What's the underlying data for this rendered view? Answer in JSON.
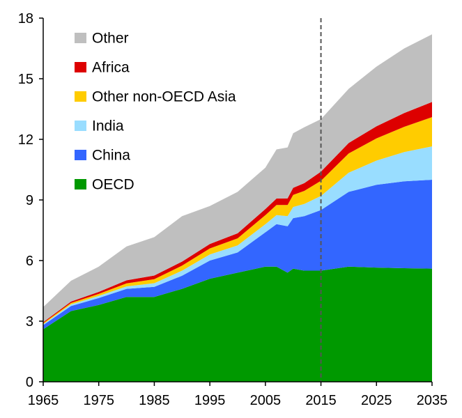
{
  "chart_data": {
    "type": "area",
    "stacked": true,
    "title": "",
    "xlabel": "",
    "ylabel": "",
    "xlim": [
      1965,
      2035
    ],
    "ylim": [
      0,
      18
    ],
    "x_ticks": [
      1965,
      1975,
      1985,
      1995,
      2005,
      2015,
      2025,
      2035
    ],
    "y_ticks": [
      0,
      3,
      6,
      9,
      12,
      15,
      18
    ],
    "grid": false,
    "legend": {
      "placement": "top-left",
      "order": [
        "Other",
        "Africa",
        "Other non-OECD Asia",
        "India",
        "China",
        "OECD"
      ]
    },
    "annotations": [
      {
        "type": "vertical-dashed-line",
        "x": 2015
      }
    ],
    "x": [
      1965,
      1970,
      1975,
      1980,
      1985,
      1990,
      1995,
      2000,
      2005,
      2007,
      2009,
      2010,
      2012,
      2015,
      2020,
      2025,
      2030,
      2035
    ],
    "series": [
      {
        "name": "OECD",
        "color": "#009900",
        "values": [
          2.6,
          3.5,
          3.8,
          4.2,
          4.2,
          4.6,
          5.1,
          5.4,
          5.7,
          5.7,
          5.4,
          5.6,
          5.5,
          5.5,
          5.7,
          5.65,
          5.62,
          5.6
        ]
      },
      {
        "name": "China",
        "color": "#3366ff",
        "values": [
          0.2,
          0.25,
          0.35,
          0.4,
          0.5,
          0.65,
          0.9,
          1.0,
          1.7,
          2.1,
          2.3,
          2.5,
          2.7,
          3.0,
          3.7,
          4.1,
          4.3,
          4.4
        ]
      },
      {
        "name": "India",
        "color": "#99ddff",
        "values": [
          0.05,
          0.08,
          0.1,
          0.12,
          0.18,
          0.25,
          0.3,
          0.35,
          0.4,
          0.45,
          0.5,
          0.55,
          0.6,
          0.7,
          0.95,
          1.2,
          1.45,
          1.65
        ]
      },
      {
        "name": "Other non-OECD Asia",
        "color": "#ffcc00",
        "values": [
          0.05,
          0.07,
          0.1,
          0.15,
          0.2,
          0.25,
          0.3,
          0.35,
          0.45,
          0.5,
          0.55,
          0.6,
          0.65,
          0.75,
          0.95,
          1.1,
          1.25,
          1.45
        ]
      },
      {
        "name": "Africa",
        "color": "#dd0000",
        "values": [
          0.05,
          0.07,
          0.1,
          0.15,
          0.18,
          0.2,
          0.22,
          0.25,
          0.3,
          0.32,
          0.33,
          0.35,
          0.38,
          0.45,
          0.52,
          0.6,
          0.68,
          0.75
        ]
      },
      {
        "name": "Other",
        "color": "#bfbfbf",
        "values": [
          0.75,
          1.03,
          1.25,
          1.68,
          1.9,
          2.25,
          1.88,
          2.05,
          2.05,
          2.43,
          2.52,
          2.7,
          2.77,
          2.6,
          2.68,
          2.95,
          3.2,
          3.35
        ]
      }
    ]
  }
}
